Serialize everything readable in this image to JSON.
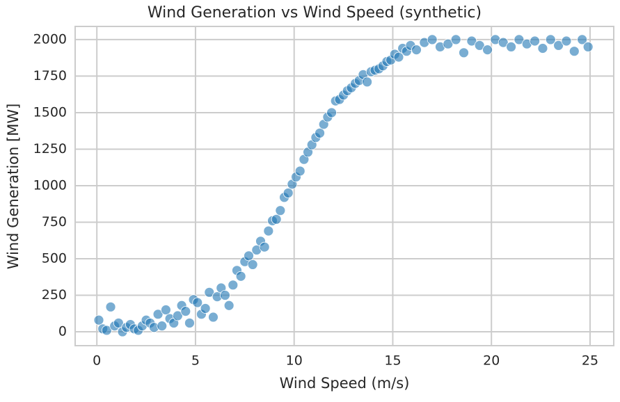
{
  "chart_data": {
    "type": "scatter",
    "title": "Wind Generation vs Wind Speed (synthetic)",
    "x_label": "Wind Speed (m/s)",
    "y_label": "Wind Generation [MW]",
    "color": "#1f77b4",
    "grid": true,
    "xlim": [
      -1.1,
      26.2
    ],
    "ylim": [
      -95,
      2090
    ],
    "xticks": [
      0,
      5,
      10,
      15,
      20,
      25
    ],
    "yticks": [
      0,
      250,
      500,
      750,
      1000,
      1250,
      1500,
      1750,
      2000
    ],
    "x": [
      0.1,
      0.3,
      0.5,
      0.7,
      0.9,
      1.1,
      1.3,
      1.5,
      1.7,
      1.9,
      2.1,
      2.3,
      2.5,
      2.7,
      2.9,
      3.1,
      3.3,
      3.5,
      3.7,
      3.9,
      4.1,
      4.3,
      4.5,
      4.7,
      4.9,
      5.1,
      5.3,
      5.5,
      5.7,
      5.9,
      6.1,
      6.3,
      6.5,
      6.7,
      6.9,
      7.1,
      7.3,
      7.5,
      7.7,
      7.9,
      8.1,
      8.3,
      8.5,
      8.7,
      8.9,
      9.1,
      9.3,
      9.5,
      9.7,
      9.9,
      10.1,
      10.3,
      10.5,
      10.7,
      10.9,
      11.1,
      11.3,
      11.5,
      11.7,
      11.9,
      12.1,
      12.3,
      12.5,
      12.7,
      12.9,
      13.1,
      13.3,
      13.5,
      13.7,
      13.9,
      14.1,
      14.3,
      14.5,
      14.7,
      14.9,
      15.1,
      15.3,
      15.5,
      15.7,
      15.9,
      16.2,
      16.6,
      17,
      17.4,
      17.8,
      18.2,
      18.6,
      19,
      19.4,
      19.8,
      20.2,
      20.6,
      21,
      21.4,
      21.8,
      22.2,
      22.6,
      23,
      23.4,
      23.8,
      24.2,
      24.6,
      24.9
    ],
    "values": [
      80,
      20,
      10,
      170,
      40,
      60,
      0,
      30,
      50,
      20,
      10,
      40,
      80,
      60,
      30,
      120,
      40,
      150,
      90,
      60,
      110,
      180,
      140,
      60,
      220,
      200,
      120,
      160,
      270,
      100,
      240,
      300,
      250,
      180,
      320,
      420,
      380,
      480,
      520,
      460,
      560,
      620,
      580,
      690,
      760,
      770,
      830,
      920,
      950,
      1010,
      1060,
      1100,
      1180,
      1230,
      1280,
      1330,
      1360,
      1420,
      1470,
      1500,
      1580,
      1590,
      1620,
      1650,
      1670,
      1700,
      1720,
      1760,
      1710,
      1780,
      1790,
      1800,
      1820,
      1850,
      1860,
      1900,
      1880,
      1940,
      1920,
      1960,
      1930,
      1980,
      2000,
      1950,
      1970,
      2000,
      1910,
      1990,
      1960,
      1930,
      2000,
      1980,
      1950,
      2000,
      1970,
      1990,
      1940,
      2000,
      1960,
      1990,
      1920,
      2000,
      1950
    ]
  }
}
